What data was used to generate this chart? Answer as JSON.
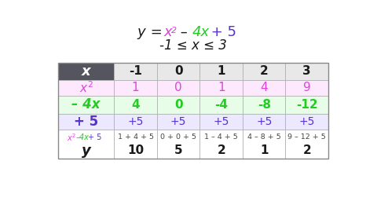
{
  "col_labels": [
    "-1",
    "0",
    "1",
    "2",
    "3"
  ],
  "row1_values": [
    "1",
    "0",
    "1",
    "4",
    "9"
  ],
  "row2_values": [
    "4",
    "0",
    "-4",
    "-8",
    "-12"
  ],
  "row3_values": [
    "+5",
    "+5",
    "+5",
    "+5",
    "+5"
  ],
  "row4_top": [
    "1 + 4 + 5",
    "0 + 0 + 5",
    "1 – 4 + 5",
    "4 – 8 + 5",
    "9 – 12 + 5"
  ],
  "row4_bot": [
    "10",
    "5",
    "2",
    "1",
    "2"
  ],
  "pink": "#dd44dd",
  "green": "#22cc22",
  "purple": "#5533cc",
  "dark_gray": "#555560",
  "light_gray": "#e8e8e8",
  "white": "#ffffff",
  "pink_bg": "#fde8fd",
  "green_bg": "#e8fde8",
  "purple_bg": "#ece8fd",
  "black": "#1a1a1a"
}
